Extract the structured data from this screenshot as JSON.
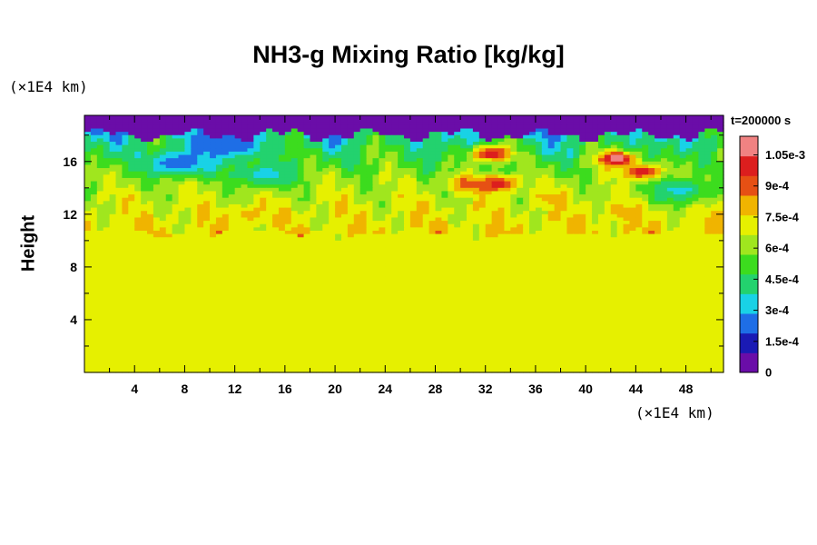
{
  "chart_data": {
    "type": "heatmap",
    "title": "NH3-g Mixing Ratio [kg/kg]",
    "xlabel": "",
    "ylabel": "Height",
    "x_unit": "(×1E4 km)",
    "y_unit": "(×1E4 km)",
    "time_label": "t=200000 s",
    "xlim": [
      0,
      51
    ],
    "ylim": [
      0,
      19.5
    ],
    "xticks": [
      4,
      8,
      12,
      16,
      20,
      24,
      28,
      32,
      36,
      40,
      44,
      48
    ],
    "yticks": [
      4,
      8,
      12,
      16
    ],
    "colorbar": {
      "min": 0,
      "max": 0.00114,
      "ticks": [
        {
          "value": 0,
          "label": "0"
        },
        {
          "value": 0.00015,
          "label": "1.5e-4"
        },
        {
          "value": 0.0003,
          "label": "3e-4"
        },
        {
          "value": 0.00045,
          "label": "4.5e-4"
        },
        {
          "value": 0.0006,
          "label": "6e-4"
        },
        {
          "value": 0.00075,
          "label": "7.5e-4"
        },
        {
          "value": 0.0009,
          "label": "9e-4"
        },
        {
          "value": 0.00105,
          "label": "1.05e-3"
        }
      ],
      "colors": [
        "#6a0da8",
        "#1a1ab4",
        "#1e6ee6",
        "#19d2e6",
        "#23d26e",
        "#3cdc1e",
        "#a0e61e",
        "#e6f000",
        "#f0b400",
        "#e65014",
        "#dc1e1e",
        "#f08282"
      ]
    },
    "fields": {
      "background_level": 0.00075,
      "lower_layer_top_km": 10.5,
      "dry_layer_bottom_km": 18.0,
      "mid_layer_level": 0.00052,
      "dry_value": 0,
      "hotspots": [
        {
          "x": 42.5,
          "y": 16.2,
          "value": 0.00114
        },
        {
          "x": 33.0,
          "y": 14.3,
          "value": 0.00105
        },
        {
          "x": 32.5,
          "y": 16.6,
          "value": 0.00105
        },
        {
          "x": 30.5,
          "y": 14.3,
          "value": 0.0009
        },
        {
          "x": 44.5,
          "y": 15.2,
          "value": 0.00105
        },
        {
          "x": 37.5,
          "y": 13.2,
          "value": 0.0008
        },
        {
          "x": 13.0,
          "y": 12.0,
          "value": 0.0008
        },
        {
          "x": 43.0,
          "y": 12.2,
          "value": 0.0008
        }
      ],
      "dry_pockets": [
        {
          "x": 7.5,
          "y": 15.9,
          "value": 0.0002
        },
        {
          "x": 11.5,
          "y": 17.2,
          "value": 0.0002
        },
        {
          "x": 14.5,
          "y": 15.0,
          "value": 0.00035
        },
        {
          "x": 47.5,
          "y": 13.8,
          "value": 0.00035
        }
      ]
    }
  }
}
